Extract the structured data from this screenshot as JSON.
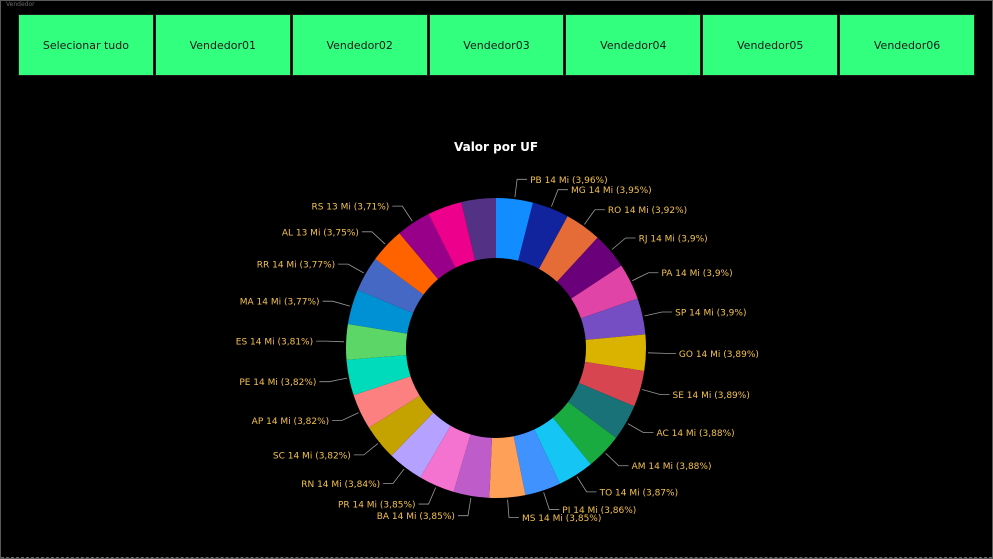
{
  "slicer": {
    "caption": "Vendedor",
    "items": [
      {
        "label": "Selecionar tudo"
      },
      {
        "label": "Vendedor01"
      },
      {
        "label": "Vendedor02"
      },
      {
        "label": "Vendedor03"
      },
      {
        "label": "Vendedor04"
      },
      {
        "label": "Vendedor05"
      },
      {
        "label": "Vendedor06"
      }
    ],
    "background_color": "#33ff7f"
  },
  "chart_data": {
    "type": "pie",
    "title": "Valor por UF",
    "donut": true,
    "label_color": "#f2c14e",
    "slices": [
      {
        "label": "PB",
        "amount": "14 Mi",
        "percent": 3.96,
        "percent_text": "3,96%",
        "color": "#118dff"
      },
      {
        "label": "MG",
        "amount": "14 Mi",
        "percent": 3.95,
        "percent_text": "3,95%",
        "color": "#12239e"
      },
      {
        "label": "RO",
        "amount": "14 Mi",
        "percent": 3.92,
        "percent_text": "3,92%",
        "color": "#e66c37"
      },
      {
        "label": "RJ",
        "amount": "14 Mi",
        "percent": 3.9,
        "percent_text": "3,9%",
        "color": "#6b007b"
      },
      {
        "label": "PA",
        "amount": "14 Mi",
        "percent": 3.9,
        "percent_text": "3,9%",
        "color": "#e044a7"
      },
      {
        "label": "SP",
        "amount": "14 Mi",
        "percent": 3.9,
        "percent_text": "3,9%",
        "color": "#744ec2"
      },
      {
        "label": "GO",
        "amount": "14 Mi",
        "percent": 3.89,
        "percent_text": "3,89%",
        "color": "#d9b300"
      },
      {
        "label": "SE",
        "amount": "14 Mi",
        "percent": 3.89,
        "percent_text": "3,89%",
        "color": "#d64550"
      },
      {
        "label": "AC",
        "amount": "14 Mi",
        "percent": 3.88,
        "percent_text": "3,88%",
        "color": "#197278"
      },
      {
        "label": "AM",
        "amount": "14 Mi",
        "percent": 3.88,
        "percent_text": "3,88%",
        "color": "#1aab40"
      },
      {
        "label": "TO",
        "amount": "14 Mi",
        "percent": 3.87,
        "percent_text": "3,87%",
        "color": "#15c6f4"
      },
      {
        "label": "PI",
        "amount": "14 Mi",
        "percent": 3.86,
        "percent_text": "3,86%",
        "color": "#4092ff"
      },
      {
        "label": "MS",
        "amount": "14 Mi",
        "percent": 3.85,
        "percent_text": "3,85%",
        "color": "#ffa058"
      },
      {
        "label": "BA",
        "amount": "14 Mi",
        "percent": 3.85,
        "percent_text": "3,85%",
        "color": "#be5dc9"
      },
      {
        "label": "PR",
        "amount": "14 Mi",
        "percent": 3.85,
        "percent_text": "3,85%",
        "color": "#f472d0"
      },
      {
        "label": "RN",
        "amount": "14 Mi",
        "percent": 3.84,
        "percent_text": "3,84%",
        "color": "#b5a1ff"
      },
      {
        "label": "SC",
        "amount": "14 Mi",
        "percent": 3.82,
        "percent_text": "3,82%",
        "color": "#c4a200"
      },
      {
        "label": "AP",
        "amount": "14 Mi",
        "percent": 3.82,
        "percent_text": "3,82%",
        "color": "#fd8080"
      },
      {
        "label": "PE",
        "amount": "14 Mi",
        "percent": 3.82,
        "percent_text": "3,82%",
        "color": "#00dbbc"
      },
      {
        "label": "ES",
        "amount": "14 Mi",
        "percent": 3.81,
        "percent_text": "3,81%",
        "color": "#5bd667"
      },
      {
        "label": "MA",
        "amount": "14 Mi",
        "percent": 3.77,
        "percent_text": "3,77%",
        "color": "#0091d5"
      },
      {
        "label": "RR",
        "amount": "14 Mi",
        "percent": 3.77,
        "percent_text": "3,77%",
        "color": "#4668c5"
      },
      {
        "label": "AL",
        "amount": "13 Mi",
        "percent": 3.75,
        "percent_text": "3,75%",
        "color": "#ff6300"
      },
      {
        "label": "RS",
        "amount": "13 Mi",
        "percent": 3.71,
        "percent_text": "3,71%",
        "color": "#99008a"
      },
      {
        "label": "",
        "amount": "",
        "percent": 3.71,
        "percent_text": "",
        "color": "#ec008c"
      },
      {
        "label": "",
        "amount": "",
        "percent": 3.71,
        "percent_text": "",
        "color": "#533285"
      }
    ]
  }
}
